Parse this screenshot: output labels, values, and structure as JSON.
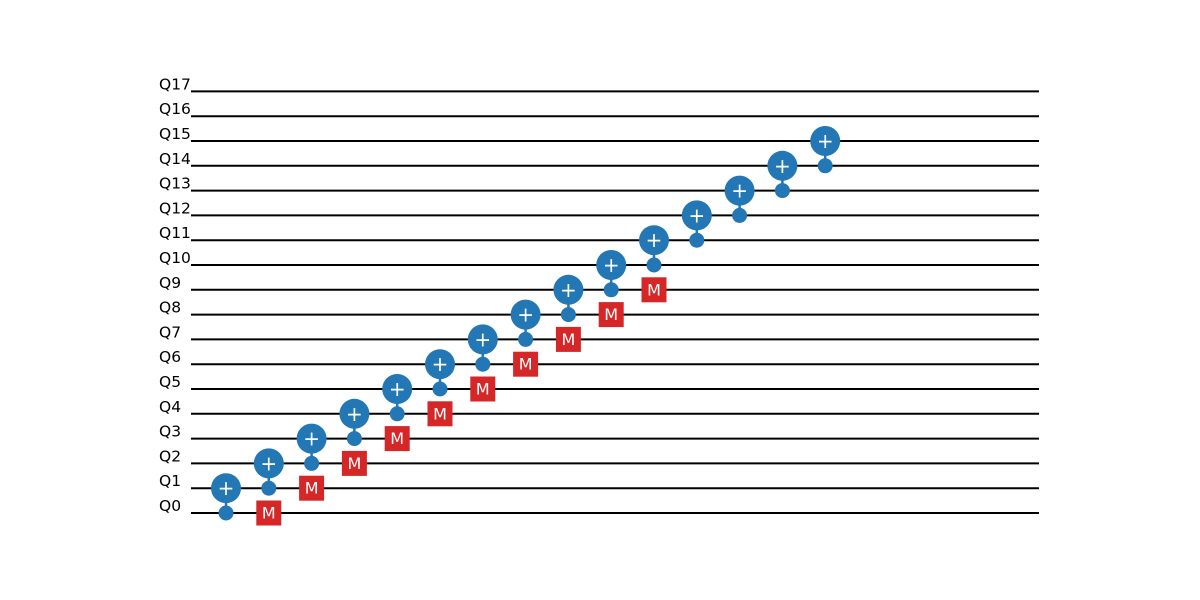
{
  "circuit": {
    "qubits": [
      "Q0",
      "Q1",
      "Q2",
      "Q3",
      "Q4",
      "Q5",
      "Q6",
      "Q7",
      "Q8",
      "Q9",
      "Q10",
      "Q11",
      "Q12",
      "Q13",
      "Q14",
      "Q15",
      "Q16",
      "Q17"
    ],
    "colors": {
      "gate": "#2277b4",
      "measure": "#d62728",
      "wire": "#000000",
      "gate_text": "#ffffff"
    },
    "symbols": {
      "target": "+",
      "measure": "M"
    },
    "operations": [
      {
        "step": 0,
        "type": "cx",
        "control": 0,
        "target": 1
      },
      {
        "step": 1,
        "type": "cx",
        "control": 1,
        "target": 2
      },
      {
        "step": 1,
        "type": "measure",
        "qubit": 0
      },
      {
        "step": 2,
        "type": "cx",
        "control": 2,
        "target": 3
      },
      {
        "step": 2,
        "type": "measure",
        "qubit": 1
      },
      {
        "step": 3,
        "type": "cx",
        "control": 3,
        "target": 4
      },
      {
        "step": 3,
        "type": "measure",
        "qubit": 2
      },
      {
        "step": 4,
        "type": "cx",
        "control": 4,
        "target": 5
      },
      {
        "step": 4,
        "type": "measure",
        "qubit": 3
      },
      {
        "step": 5,
        "type": "cx",
        "control": 5,
        "target": 6
      },
      {
        "step": 5,
        "type": "measure",
        "qubit": 4
      },
      {
        "step": 6,
        "type": "cx",
        "control": 6,
        "target": 7
      },
      {
        "step": 6,
        "type": "measure",
        "qubit": 5
      },
      {
        "step": 7,
        "type": "cx",
        "control": 7,
        "target": 8
      },
      {
        "step": 7,
        "type": "measure",
        "qubit": 6
      },
      {
        "step": 8,
        "type": "cx",
        "control": 8,
        "target": 9
      },
      {
        "step": 8,
        "type": "measure",
        "qubit": 7
      },
      {
        "step": 9,
        "type": "cx",
        "control": 9,
        "target": 10
      },
      {
        "step": 9,
        "type": "measure",
        "qubit": 8
      },
      {
        "step": 10,
        "type": "cx",
        "control": 10,
        "target": 11
      },
      {
        "step": 10,
        "type": "measure",
        "qubit": 9
      },
      {
        "step": 11,
        "type": "cx",
        "control": 11,
        "target": 12
      },
      {
        "step": 12,
        "type": "cx",
        "control": 12,
        "target": 13
      },
      {
        "step": 13,
        "type": "cx",
        "control": 13,
        "target": 14
      },
      {
        "step": 14,
        "type": "cx",
        "control": 14,
        "target": 15
      }
    ]
  }
}
